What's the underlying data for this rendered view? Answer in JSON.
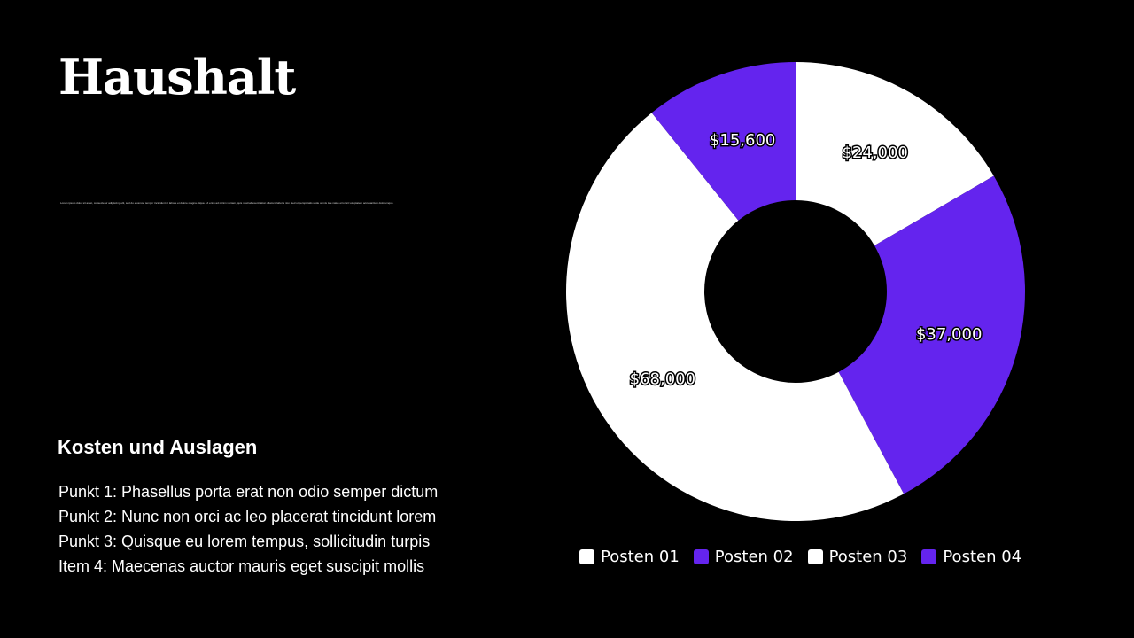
{
  "slide": {
    "title": "Haushalt",
    "fineprint": "Lorem ipsum dolor sit amet, consectetur adipiscing elit, sed do eiusmod tempor incididunt ut labore et dolore magna aliqua. Ut enim ad minim veniam, quis nostrud exercitation ullamco laboris nisi. Sed ut perspiciatis unde omnis iste natus error sit voluptatem accusantium doloremque.",
    "subheading": "Kosten und Auslagen",
    "bullets": [
      "Punkt 1: Phasellus porta erat non odio semper dictum",
      "Punkt 2: Nunc non orci ac leo placerat tincidunt lorem",
      "Punkt 3: Quisque eu lorem tempus, sollicitudin turpis",
      "Item 4: Maecenas auctor mauris eget suscipit mollis"
    ]
  },
  "colors": {
    "background": "#000000",
    "white": "#ffffff",
    "purple": "#6424ee"
  },
  "chart_data": {
    "type": "pie",
    "donut": true,
    "title": "",
    "legend_position": "bottom",
    "categories": [
      "Posten 01",
      "Posten 02",
      "Posten 03",
      "Posten 04"
    ],
    "values": [
      24000,
      37000,
      68000,
      15600
    ],
    "data_labels": [
      "$24,000",
      "$37,000",
      "$68,000",
      "$15,600"
    ],
    "colors": [
      "#ffffff",
      "#6424ee",
      "#ffffff",
      "#6424ee"
    ]
  }
}
